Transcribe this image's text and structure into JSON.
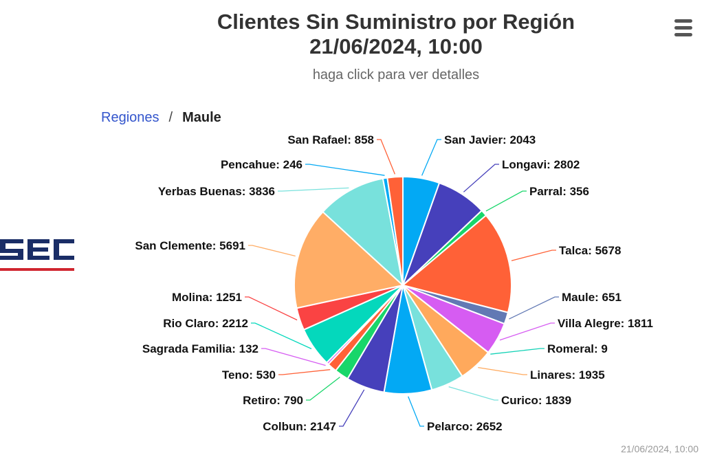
{
  "header": {
    "title_line1": "Clientes Sin Suministro por Región",
    "title_line2": "21/06/2024, 10:00",
    "subtitle": "haga click para ver detalles"
  },
  "breadcrumb": {
    "root": "Regiones",
    "separator": "/",
    "current": "Maule"
  },
  "logo": {
    "text": "SEC",
    "icon": "sec-logo",
    "accent": "#d0262f",
    "brand": "#1a2d66"
  },
  "menu": {
    "icon": "hamburger-menu-icon"
  },
  "credit": "21/06/2024, 10:00",
  "chart_data": {
    "type": "pie",
    "title": "Clientes Sin Suministro por Región",
    "subtitle": "haga click para ver detalles",
    "series": [
      {
        "name": "Maule",
        "points": [
          {
            "name": "San Javier",
            "value": 2043,
            "color": "#03a9f4"
          },
          {
            "name": "Longavi",
            "value": 2802,
            "color": "#4640bb"
          },
          {
            "name": "Parral",
            "value": 356,
            "color": "#18d66a"
          },
          {
            "name": "Talca",
            "value": 5678,
            "color": "#ff6137"
          },
          {
            "name": "Maule",
            "value": 651,
            "color": "#6279b4"
          },
          {
            "name": "Villa Alegre",
            "value": 1811,
            "color": "#d65cf2"
          },
          {
            "name": "Romeral",
            "value": 9,
            "color": "#12d2b6"
          },
          {
            "name": "Linares",
            "value": 1935,
            "color": "#ffa95c"
          },
          {
            "name": "Curico",
            "value": 1839,
            "color": "#78e1dc"
          },
          {
            "name": "Pelarco",
            "value": 2652,
            "color": "#03a9f4"
          },
          {
            "name": "Colbun",
            "value": 2147,
            "color": "#4640bb"
          },
          {
            "name": "Retiro",
            "value": 790,
            "color": "#18d66a"
          },
          {
            "name": "Teno",
            "value": 530,
            "color": "#ff6137"
          },
          {
            "name": "Sagrada Familia",
            "value": 132,
            "color": "#d65cf2"
          },
          {
            "name": "Rio Claro",
            "value": 2212,
            "color": "#04d8bc"
          },
          {
            "name": "Molina",
            "value": 1251,
            "color": "#fa4343"
          },
          {
            "name": "San Clemente",
            "value": 5691,
            "color": "#ffad66"
          },
          {
            "name": "Yerbas Buenas",
            "value": 3836,
            "color": "#78e1dc"
          },
          {
            "name": "Pencahue",
            "value": 246,
            "color": "#03a9f4"
          },
          {
            "name": "San Rafael",
            "value": 858,
            "color": "#ff6137"
          }
        ]
      }
    ],
    "label_format": "{name}: {value}"
  }
}
